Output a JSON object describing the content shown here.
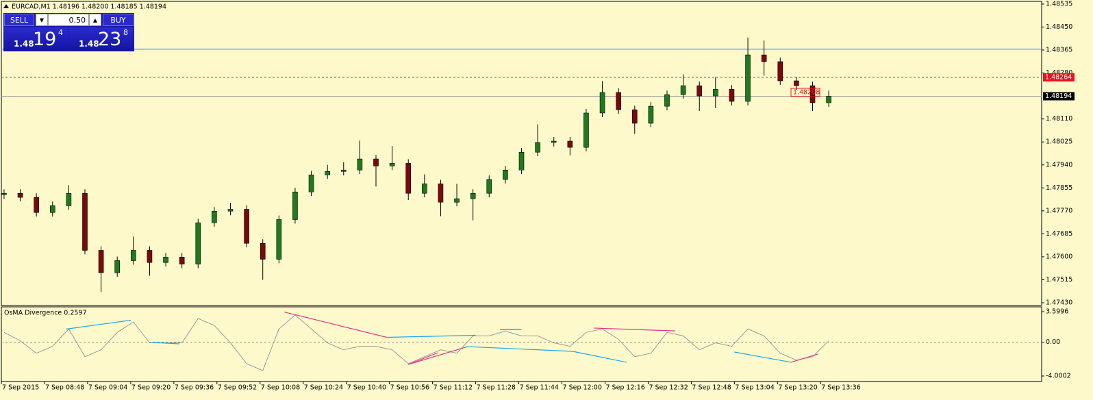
{
  "trade_panel": {
    "sell": {
      "label": "SELL",
      "prefix": "1.48",
      "big": "19",
      "pip": "4"
    },
    "buy": {
      "label": "BUY",
      "prefix": "1.48",
      "big": "23",
      "pip": "8"
    },
    "lot": "0.50"
  },
  "chart_data": [
    {
      "type": "candlestick",
      "title": "EURCAD,M1 1.48196 1.48200 1.48185 1.48194",
      "up_color": "#1f7a1f",
      "down_color": "#7a0a0a",
      "x": [
        1,
        7,
        13,
        19,
        25,
        31,
        37,
        43,
        49,
        55,
        61,
        67,
        73,
        79,
        85,
        91,
        97,
        103,
        109,
        115,
        121,
        127,
        133,
        139,
        145,
        151,
        157,
        163,
        169,
        175,
        181,
        187,
        193,
        199,
        205,
        211,
        217,
        223,
        229,
        235,
        241,
        247,
        253,
        259,
        265,
        271,
        277,
        283,
        289,
        295,
        301,
        307
      ],
      "open": [
        1.4783,
        1.47835,
        1.4782,
        1.47764,
        1.47789,
        1.47835,
        1.47624,
        1.47541,
        1.47586,
        1.47624,
        1.47579,
        1.47599,
        1.47573,
        1.47726,
        1.47769,
        1.47776,
        1.4765,
        1.47591,
        1.47738,
        1.4784,
        1.47903,
        1.47916,
        1.47921,
        1.47962,
        1.47936,
        1.47946,
        1.47835,
        1.4787,
        1.47802,
        1.47815,
        1.47835,
        1.47886,
        1.47921,
        1.47987,
        1.48023,
        1.48028,
        1.48005,
        1.48132,
        1.48208,
        1.48144,
        1.48094,
        1.48157,
        1.482,
        1.48233,
        1.48195,
        1.4822,
        1.48175,
        1.48347,
        1.48322,
        1.48251,
        1.48233,
        1.4817
      ],
      "high": [
        1.4785,
        1.4785,
        1.47835,
        1.47804,
        1.47865,
        1.4785,
        1.47639,
        1.47601,
        1.47675,
        1.47639,
        1.47614,
        1.47614,
        1.47741,
        1.47784,
        1.478,
        1.47791,
        1.47665,
        1.47753,
        1.47855,
        1.47918,
        1.4794,
        1.4795,
        1.4803,
        1.47977,
        1.4801,
        1.47961,
        1.47905,
        1.47885,
        1.4787,
        1.4785,
        1.47901,
        1.47936,
        1.48002,
        1.4809,
        1.48043,
        1.48043,
        1.48147,
        1.4825,
        1.48223,
        1.48159,
        1.48172,
        1.48215,
        1.48275,
        1.48248,
        1.48265,
        1.48235,
        1.48411,
        1.484,
        1.48337,
        1.48266,
        1.48248,
        1.48215
      ],
      "low": [
        1.47815,
        1.47805,
        1.47749,
        1.47749,
        1.47774,
        1.47609,
        1.4747,
        1.47526,
        1.47571,
        1.4753,
        1.47564,
        1.47558,
        1.47558,
        1.47711,
        1.47754,
        1.47635,
        1.47515,
        1.47576,
        1.47723,
        1.47825,
        1.47888,
        1.47901,
        1.47906,
        1.4786,
        1.47921,
        1.4781,
        1.4782,
        1.4775,
        1.47787,
        1.47735,
        1.4782,
        1.47871,
        1.47906,
        1.47972,
        1.48008,
        1.47975,
        1.4799,
        1.48117,
        1.48129,
        1.48055,
        1.48079,
        1.48142,
        1.48185,
        1.4814,
        1.4815,
        1.4816,
        1.4816,
        1.4827,
        1.48236,
        1.48218,
        1.4814,
        1.48155
      ],
      "close": [
        1.47835,
        1.4782,
        1.47764,
        1.47789,
        1.47835,
        1.47624,
        1.47541,
        1.47586,
        1.47624,
        1.47579,
        1.47599,
        1.47573,
        1.47726,
        1.47769,
        1.47776,
        1.4765,
        1.47591,
        1.47738,
        1.4784,
        1.47903,
        1.47916,
        1.47921,
        1.47962,
        1.47936,
        1.47946,
        1.47835,
        1.4787,
        1.47802,
        1.47815,
        1.47835,
        1.47886,
        1.47921,
        1.47987,
        1.48023,
        1.48028,
        1.48005,
        1.48132,
        1.48208,
        1.48144,
        1.48094,
        1.48157,
        1.482,
        1.48233,
        1.48195,
        1.4822,
        1.48175,
        1.48347,
        1.48322,
        1.48251,
        1.48233,
        1.4817,
        1.48194
      ],
      "xlim": [
        0,
        386
      ],
      "ylim": [
        1.4742,
        1.4855
      ],
      "yticks": [
        1.48535,
        {
          "value": 1.4845,
          "label": "1.48450"
        },
        1.48365,
        {
          "value": 1.4828,
          "label": "1.48280"
        },
        {
          "value": 1.4811,
          "label": "1.48110"
        },
        1.48025,
        {
          "value": 1.4794,
          "label": "1.47940"
        },
        1.47855,
        {
          "value": 1.4777,
          "label": "1.47770"
        },
        1.47685,
        {
          "value": 1.476,
          "label": "1.47600"
        },
        1.47515,
        {
          "value": 1.4743,
          "label": "1.47430"
        }
      ],
      "levels": [
        {
          "value": 1.48368,
          "color": "#1e90ff",
          "style": "solid"
        },
        {
          "value": 1.48264,
          "color": "#b03030",
          "style": "dashed",
          "label_color": "#e8131b"
        },
        {
          "value": 1.48194,
          "color": "#9a9a9a",
          "style": "solid",
          "label_color": "#000000"
        }
      ],
      "price_labels": [
        {
          "x": 293,
          "value": 1.48208,
          "color": "#e8131b"
        }
      ]
    },
    {
      "type": "line",
      "title": "OsMA Divergence 0.2597",
      "color": "#9a9a9a",
      "x": [
        1,
        7,
        13,
        19,
        25,
        31,
        37,
        43,
        49,
        55,
        61,
        67,
        73,
        79,
        85,
        91,
        97,
        103,
        109,
        115,
        121,
        127,
        133,
        139,
        145,
        151,
        157,
        163,
        169,
        175,
        181,
        187,
        193,
        199,
        205,
        211,
        217,
        223,
        229,
        235,
        241,
        247,
        253,
        259,
        265,
        271,
        277,
        283,
        289,
        295,
        301,
        307
      ],
      "values": [
        1.15,
        0.16,
        -1.31,
        -0.49,
        1.56,
        -1.72,
        -0.9,
        1.15,
        2.38,
        -0.08,
        -0.08,
        -0.08,
        2.79,
        1.97,
        -0.08,
        -2.54,
        -3.36,
        1.56,
        3.2,
        1.56,
        -0.08,
        -0.9,
        -0.49,
        -0.49,
        -0.9,
        -2.54,
        -1.72,
        -0.9,
        -1.31,
        0.74,
        0.74,
        1.31,
        0.74,
        0.74,
        -0.08,
        -0.49,
        1.15,
        1.56,
        0.33,
        -1.72,
        -1.31,
        1.15,
        0.74,
        -0.9,
        -0.08,
        -0.49,
        1.56,
        0.74,
        -1.31,
        -2.13,
        -1.72,
        0.16
      ],
      "xlim": [
        0,
        386
      ],
      "ylim": [
        -4.65,
        4.17
      ],
      "yticks": [
        3.5996,
        {
          "value": 0,
          "label": "0.00"
        },
        -4.0002
      ],
      "levels": [
        {
          "value": 0,
          "color": "#8a8a8a",
          "style": "dashed"
        }
      ],
      "divergences": [
        {
          "color": "#1ea7ef",
          "x": [
            24,
            48
          ],
          "values": [
            1.54,
            2.59
          ]
        },
        {
          "color": "#1ea7ef",
          "x": [
            56,
            66
          ],
          "values": [
            -0.04,
            -0.2
          ]
        },
        {
          "color": "#e5338a",
          "x": [
            105,
            143
          ],
          "values": [
            3.56,
            0.57
          ]
        },
        {
          "color": "#1ea7ef",
          "x": [
            143,
            176
          ],
          "values": [
            0.57,
            0.81
          ]
        },
        {
          "color": "#e5338a",
          "x": [
            151,
            173
          ],
          "values": [
            -2.63,
            -0.53
          ]
        },
        {
          "color": "#e5338a",
          "x": [
            151,
            162
          ],
          "values": [
            -2.63,
            -1.25
          ]
        },
        {
          "color": "#1ea7ef",
          "x": [
            173,
            212
          ],
          "values": [
            -0.53,
            -1.09
          ]
        },
        {
          "color": "#1ea7ef",
          "x": [
            212,
            232
          ],
          "values": [
            -1.09,
            -2.38
          ]
        },
        {
          "color": "#e5338a",
          "x": [
            185,
            193
          ],
          "values": [
            1.5,
            1.5
          ]
        },
        {
          "color": "#e5338a",
          "x": [
            220,
            250
          ],
          "values": [
            1.66,
            1.33
          ]
        },
        {
          "color": "#1ea7ef",
          "x": [
            272,
            293
          ],
          "values": [
            -1.17,
            -2.38
          ]
        },
        {
          "color": "#e5338a",
          "x": [
            293,
            303
          ],
          "values": [
            -2.38,
            -1.41
          ]
        }
      ],
      "xticks": [
        {
          "value": 0,
          "label": "7 Sep 2015"
        },
        {
          "value": 16,
          "label": "7 Sep 08:48"
        },
        {
          "value": 32,
          "label": "7 Sep 09:04"
        },
        {
          "value": 48,
          "label": "7 Sep 09:20"
        },
        {
          "value": 64,
          "label": "7 Sep 09:36"
        },
        {
          "value": 80,
          "label": "7 Sep 09:52"
        },
        {
          "value": 96,
          "label": "7 Sep 10:08"
        },
        {
          "value": 112,
          "label": "7 Sep 10:24"
        },
        {
          "value": 128,
          "label": "7 Sep 10:40"
        },
        {
          "value": 144,
          "label": "7 Sep 10:56"
        },
        {
          "value": 160,
          "label": "7 Sep 11:12"
        },
        {
          "value": 176,
          "label": "7 Sep 11:28"
        },
        {
          "value": 192,
          "label": "7 Sep 11:44"
        },
        {
          "value": 208,
          "label": "7 Sep 12:00"
        },
        {
          "value": 224,
          "label": "7 Sep 12:16"
        },
        {
          "value": 240,
          "label": "7 Sep 12:32"
        },
        {
          "value": 256,
          "label": "7 Sep 12:48"
        },
        {
          "value": 272,
          "label": "7 Sep 13:04"
        },
        {
          "value": 288,
          "label": "7 Sep 13:20"
        },
        {
          "value": 304,
          "label": "7 Sep 13:36"
        }
      ]
    }
  ]
}
